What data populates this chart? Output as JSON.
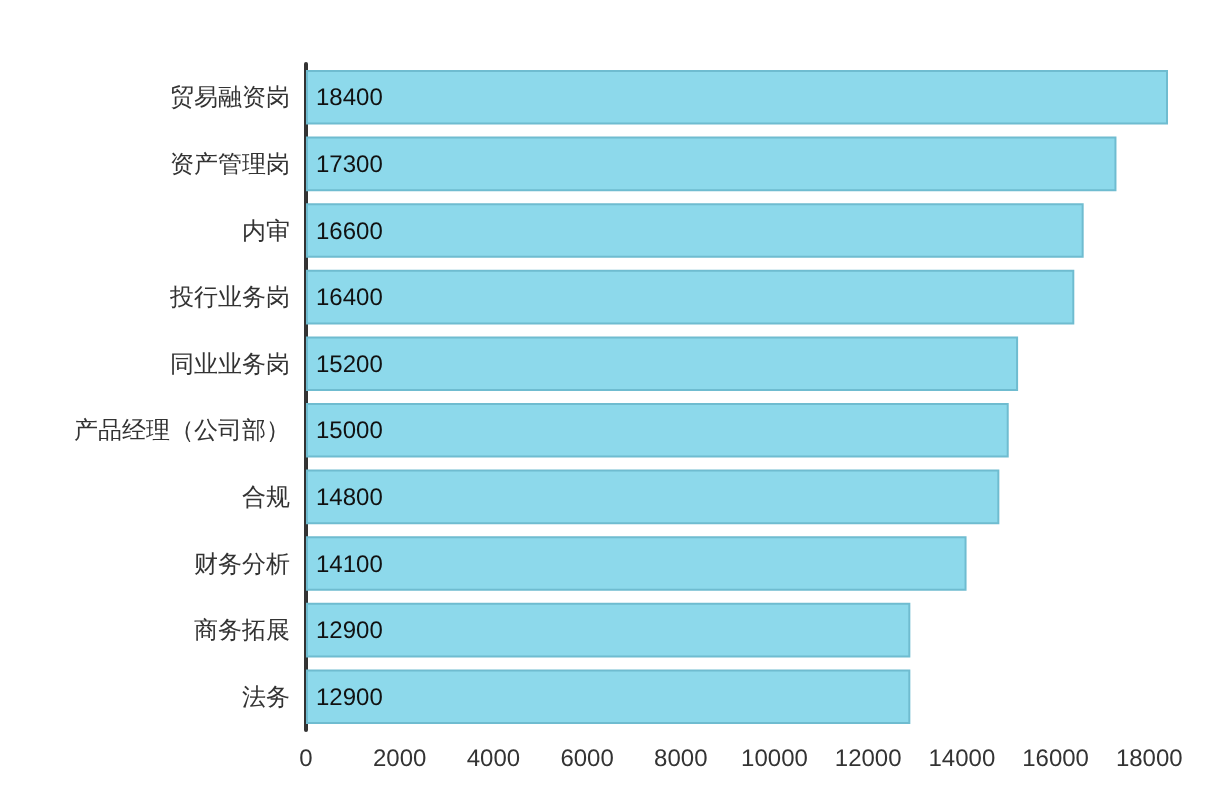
{
  "chart_data": {
    "type": "bar",
    "orientation": "horizontal",
    "categories": [
      "贸易融资岗",
      "资产管理岗",
      "内审",
      "投行业务岗",
      "同业业务岗",
      "产品经理（公司部）",
      "合规",
      "财务分析",
      "商务拓展",
      "法务"
    ],
    "values": [
      18400,
      17300,
      16600,
      16400,
      15200,
      15000,
      14800,
      14100,
      12900,
      12900
    ],
    "color": "#8dd9eb",
    "data_labels": true,
    "grid": false,
    "xlim": [
      0,
      18400
    ],
    "xticks": [
      0,
      2000,
      4000,
      6000,
      8000,
      10000,
      12000,
      14000,
      16000,
      18000
    ]
  }
}
